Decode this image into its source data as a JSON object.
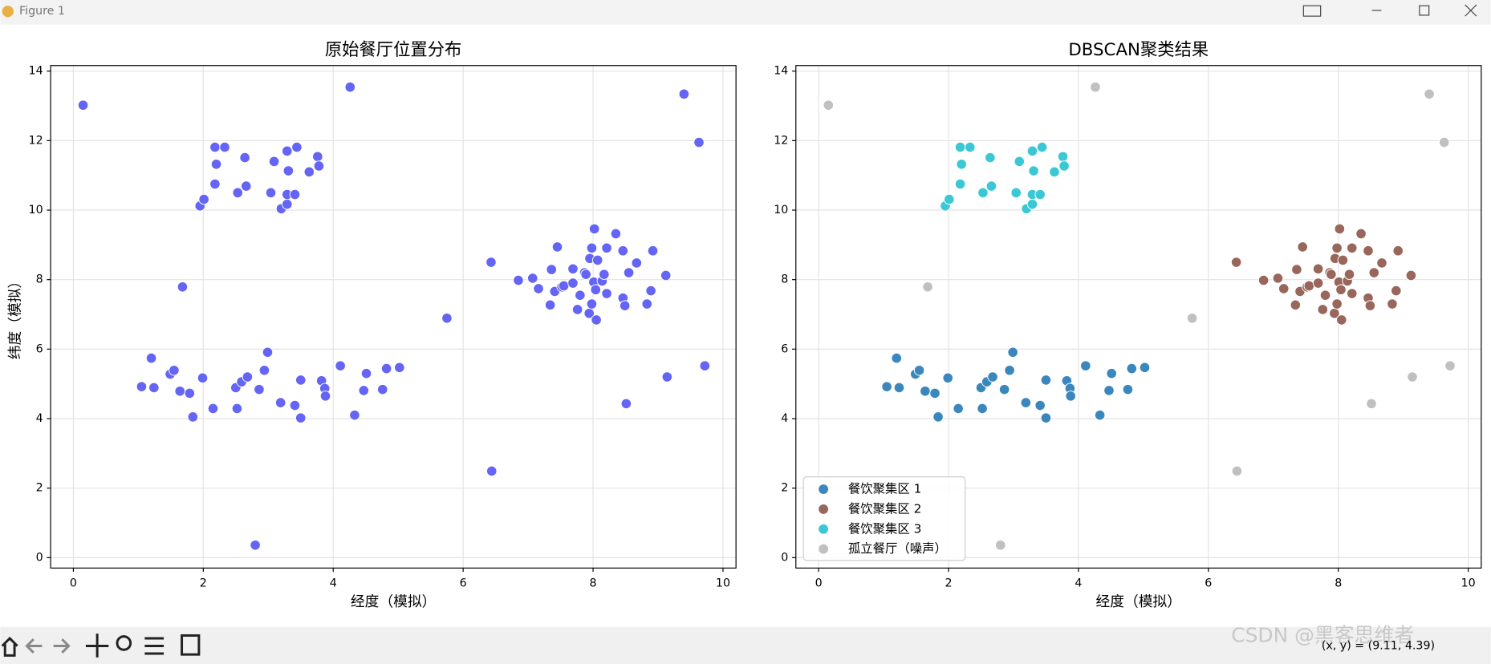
{
  "window": {
    "title": "Figure 1",
    "status": "(x, y) = (9.11, 4.39)",
    "watermark": "CSDN @黑客思维者"
  },
  "chart_data": [
    {
      "type": "scatter",
      "title": "原始餐厅位置分布",
      "xlabel": "经度（模拟）",
      "ylabel": "纬度（模拟）",
      "xlim": [
        -0.35,
        10.2
      ],
      "ylim": [
        -0.3,
        14.16
      ],
      "xticks": [
        0,
        2,
        4,
        6,
        8,
        10
      ],
      "yticks": [
        0,
        2,
        4,
        6,
        8,
        10,
        12,
        14
      ],
      "grid": true,
      "series": [
        {
          "color": "#6464f5",
          "x": [
            1.95,
            2.01,
            2.18,
            2.33,
            2.2,
            2.18,
            2.53,
            2.66,
            2.64,
            3.09,
            3.04,
            3.2,
            3.29,
            3.29,
            3.41,
            3.29,
            3.44,
            3.31,
            3.63,
            3.76,
            3.78,
            1.05,
            1.2,
            1.24,
            1.49,
            1.55,
            1.64,
            1.79,
            1.84,
            1.99,
            2.15,
            2.5,
            2.52,
            2.59,
            2.68,
            2.86,
            2.94,
            2.99,
            3.19,
            3.41,
            3.5,
            3.5,
            3.82,
            3.87,
            3.88,
            4.11,
            4.33,
            4.47,
            4.51,
            4.76,
            4.82,
            5.02,
            6.43,
            6.85,
            7.07,
            7.16,
            7.34,
            7.36,
            7.41,
            7.45,
            7.52,
            7.55,
            7.69,
            7.69,
            7.76,
            7.8,
            7.87,
            7.89,
            7.94,
            7.95,
            7.98,
            7.98,
            8.01,
            8.02,
            8.04,
            8.07,
            8.05,
            8.14,
            8.17,
            8.21,
            8.21,
            8.35,
            8.46,
            8.46,
            8.49,
            8.55,
            8.67,
            8.83,
            8.89,
            8.92,
            9.12,
            0.15,
            1.68,
            2.8,
            4.26,
            5.75,
            6.44,
            8.51,
            9.14,
            9.4,
            9.63,
            9.72
          ],
          "y": [
            10.12,
            10.31,
            11.81,
            11.81,
            11.32,
            10.75,
            10.5,
            10.69,
            11.51,
            11.4,
            10.5,
            10.04,
            10.17,
            10.45,
            10.45,
            11.7,
            11.81,
            11.13,
            11.1,
            11.54,
            11.27,
            4.92,
            5.74,
            4.89,
            5.28,
            5.39,
            4.79,
            4.73,
            4.05,
            5.17,
            4.29,
            4.89,
            4.29,
            5.06,
            5.2,
            4.84,
            5.39,
            5.91,
            4.46,
            4.38,
            5.11,
            4.02,
            5.09,
            4.87,
            4.65,
            5.52,
            4.1,
            4.81,
            5.3,
            4.84,
            5.44,
            5.47,
            8.5,
            7.98,
            8.04,
            7.74,
            7.27,
            8.29,
            7.66,
            8.94,
            7.79,
            7.82,
            7.9,
            8.31,
            7.14,
            7.55,
            8.2,
            8.15,
            7.03,
            8.61,
            7.3,
            8.91,
            7.93,
            9.46,
            7.71,
            8.56,
            6.84,
            7.96,
            8.15,
            7.6,
            8.91,
            9.32,
            8.83,
            7.47,
            7.25,
            8.2,
            8.48,
            7.3,
            7.68,
            8.83,
            8.12,
            13.02,
            7.79,
            0.36,
            13.54,
            6.89,
            2.49,
            4.43,
            5.2,
            13.34,
            11.95,
            5.52
          ]
        }
      ]
    },
    {
      "type": "scatter",
      "title": "DBSCAN聚类结果",
      "xlabel": "经度（模拟）",
      "xlim": [
        -0.35,
        10.2
      ],
      "ylim": [
        -0.3,
        14.16
      ],
      "xticks": [
        0,
        2,
        4,
        6,
        8,
        10
      ],
      "yticks": [
        0,
        2,
        4,
        6,
        8,
        10,
        12,
        14
      ],
      "grid": true,
      "legend": "lower left",
      "series": [
        {
          "name": "餐饮聚集区 1",
          "color": "#3a87be",
          "x": [
            1.05,
            1.2,
            1.24,
            1.49,
            1.55,
            1.64,
            1.79,
            1.84,
            1.99,
            2.15,
            2.5,
            2.52,
            2.59,
            2.68,
            2.86,
            2.94,
            2.99,
            3.19,
            3.41,
            3.5,
            3.5,
            3.82,
            3.87,
            3.88,
            4.11,
            4.33,
            4.47,
            4.51,
            4.76,
            4.82,
            5.02
          ],
          "y": [
            4.92,
            5.74,
            4.89,
            5.28,
            5.39,
            4.79,
            4.73,
            4.05,
            5.17,
            4.29,
            4.89,
            4.29,
            5.06,
            5.2,
            4.84,
            5.39,
            5.91,
            4.46,
            4.38,
            5.11,
            4.02,
            5.09,
            4.87,
            4.65,
            5.52,
            4.1,
            4.81,
            5.3,
            4.84,
            5.44,
            5.47
          ]
        },
        {
          "name": "餐饮聚集区 2",
          "color": "#98665a",
          "x": [
            6.43,
            6.85,
            7.07,
            7.16,
            7.34,
            7.36,
            7.41,
            7.45,
            7.52,
            7.55,
            7.69,
            7.69,
            7.76,
            7.8,
            7.87,
            7.89,
            7.94,
            7.95,
            7.98,
            7.98,
            8.01,
            8.02,
            8.04,
            8.07,
            8.05,
            8.14,
            8.17,
            8.21,
            8.21,
            8.35,
            8.46,
            8.46,
            8.49,
            8.55,
            8.67,
            8.83,
            8.89,
            8.92,
            9.12
          ],
          "y": [
            8.5,
            7.98,
            8.04,
            7.74,
            7.27,
            8.29,
            7.66,
            8.94,
            7.79,
            7.82,
            7.9,
            8.31,
            7.14,
            7.55,
            8.2,
            8.15,
            7.03,
            8.61,
            7.3,
            8.91,
            7.93,
            9.46,
            7.71,
            8.56,
            6.84,
            7.96,
            8.15,
            7.6,
            8.91,
            9.32,
            8.83,
            7.47,
            7.25,
            8.2,
            8.48,
            7.3,
            7.68,
            8.83,
            8.12
          ]
        },
        {
          "name": "餐饮聚集区 3",
          "color": "#3bc8d5",
          "x": [
            1.95,
            2.01,
            2.18,
            2.33,
            2.2,
            2.18,
            2.53,
            2.66,
            2.64,
            3.09,
            3.04,
            3.2,
            3.29,
            3.29,
            3.41,
            3.29,
            3.44,
            3.31,
            3.63,
            3.76,
            3.78
          ],
          "y": [
            10.12,
            10.31,
            11.81,
            11.81,
            11.32,
            10.75,
            10.5,
            10.69,
            11.51,
            11.4,
            10.5,
            10.04,
            10.17,
            10.45,
            10.45,
            11.7,
            11.81,
            11.13,
            11.1,
            11.54,
            11.27
          ]
        },
        {
          "name": "孤立餐厅（噪声）",
          "color": "#c0c0c0",
          "x": [
            0.15,
            1.68,
            2.8,
            4.26,
            5.75,
            6.44,
            8.51,
            9.14,
            9.4,
            9.63,
            9.72
          ],
          "y": [
            13.02,
            7.79,
            0.36,
            13.54,
            6.89,
            2.49,
            4.43,
            5.2,
            13.34,
            11.95,
            5.52
          ]
        }
      ]
    }
  ]
}
